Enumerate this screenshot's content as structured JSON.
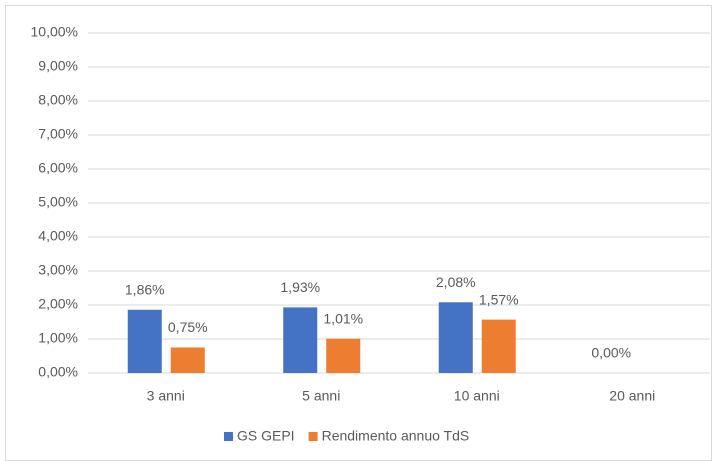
{
  "chart_data": {
    "type": "bar",
    "categories": [
      "3 anni",
      "5 anni",
      "10 anni",
      "20 anni"
    ],
    "series": [
      {
        "name": "GS GEPI",
        "color": "#4472c4",
        "values": [
          1.86,
          1.93,
          2.08,
          0
        ],
        "value_labels": [
          "1,86%",
          "1,93%",
          "2,08%",
          "0,00%"
        ]
      },
      {
        "name": "Rendimento annuo TdS",
        "color": "#ed7d31",
        "values": [
          0.75,
          1.01,
          1.57,
          null
        ],
        "value_labels": [
          "0,75%",
          "1,01%",
          "1,57%",
          null
        ]
      }
    ],
    "ylim": [
      0,
      10
    ],
    "yticks": [
      {
        "value": 0,
        "label": "0,00%"
      },
      {
        "value": 1,
        "label": "1,00%"
      },
      {
        "value": 2,
        "label": "2,00%"
      },
      {
        "value": 3,
        "label": "3,00%"
      },
      {
        "value": 4,
        "label": "4,00%"
      },
      {
        "value": 5,
        "label": "5,00%"
      },
      {
        "value": 6,
        "label": "6,00%"
      },
      {
        "value": 7,
        "label": "7,00%"
      },
      {
        "value": 8,
        "label": "8,00%"
      },
      {
        "value": 9,
        "label": "9,00%"
      },
      {
        "value": 10,
        "label": "10,00%"
      }
    ],
    "grid": true,
    "legend": "bottom"
  }
}
